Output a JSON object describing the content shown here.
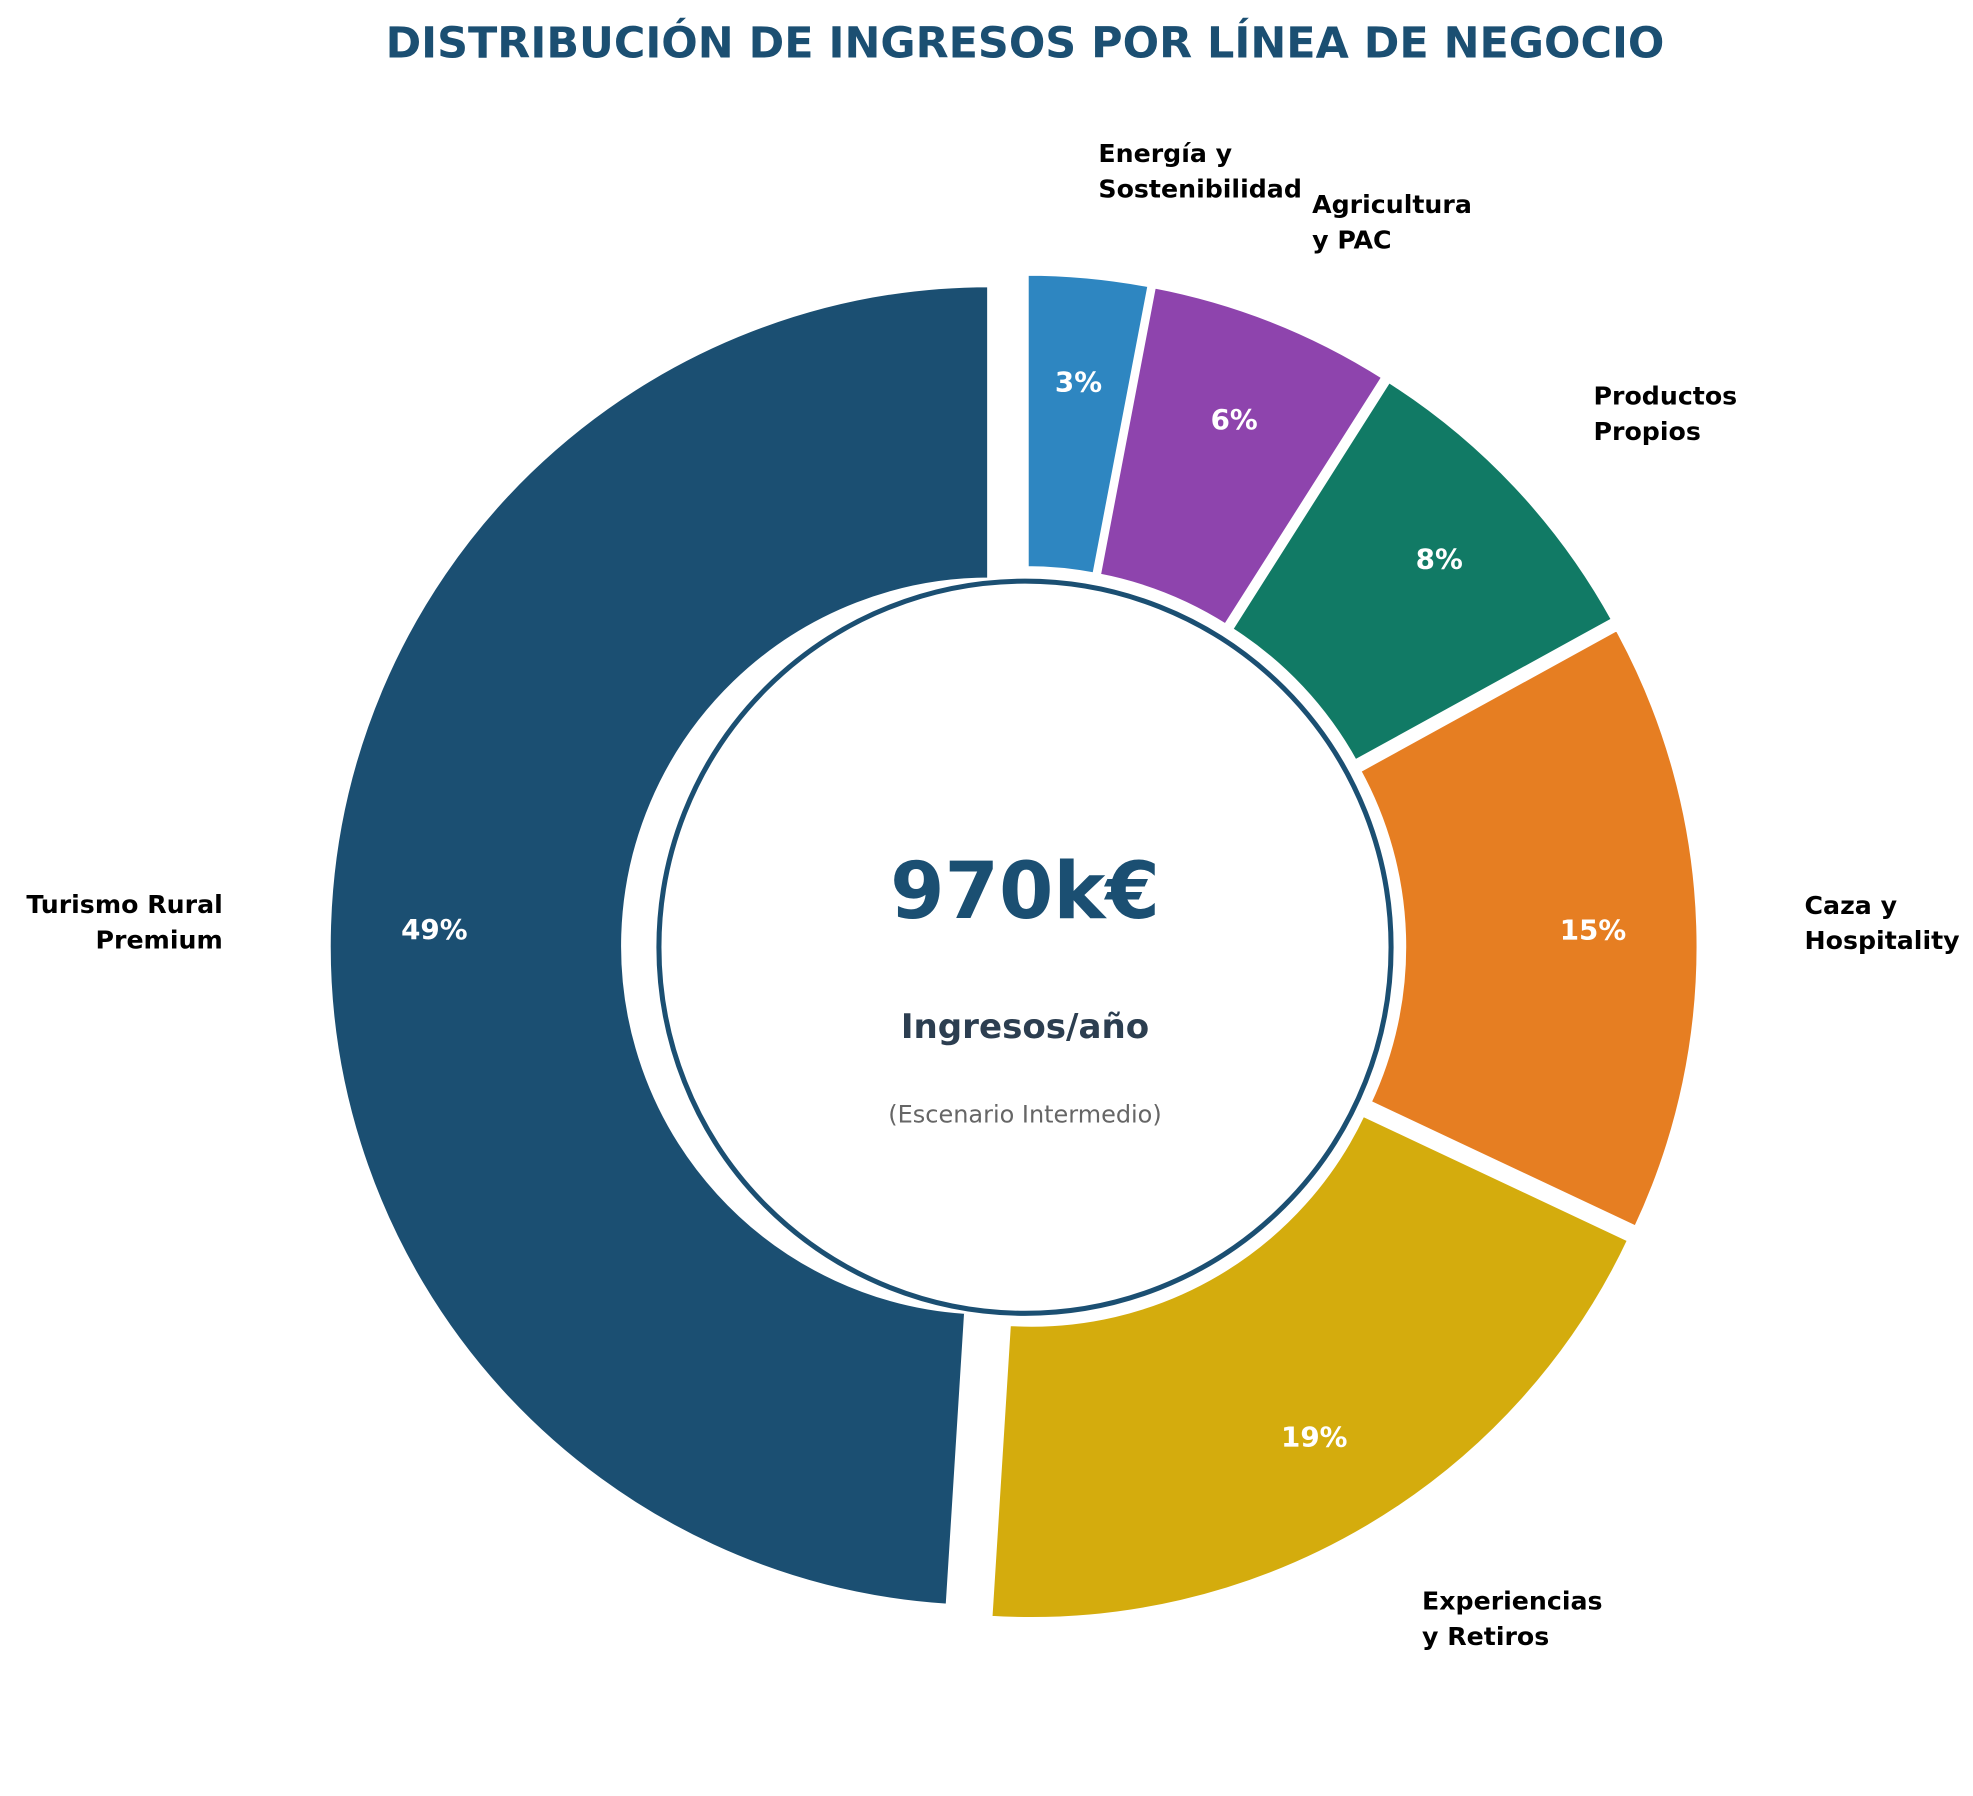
{
  "chart_data": {
    "type": "pie",
    "style": "donut",
    "title": "DISTRIBUCIÓN DE INGRESOS POR LÍNEA DE NEGOCIO",
    "title_color": "#1b4f72",
    "categories": [
      "Turismo Rural\nPremium",
      "Experiencias\ny Retiros",
      "Caza y\nHospitality",
      "Productos\nPropios",
      "Agricultura\ny PAC",
      "Energía y\nSostenibilidad"
    ],
    "values": [
      49,
      19,
      15,
      8,
      6,
      3
    ],
    "value_labels": [
      "49%",
      "19%",
      "15%",
      "8%",
      "6%",
      "3%"
    ],
    "colors": [
      "#1b4f72",
      "#d4ac0d",
      "#e67e22",
      "#117a65",
      "#8e44ad",
      "#2e86c1"
    ],
    "start_angle": 90,
    "direction": "counterclockwise",
    "exploded": [
      "Turismo Rural\nPremium"
    ],
    "center": {
      "value": "970k€",
      "label": "Ingresos/año",
      "note": "(Escenario Intermedio)"
    }
  }
}
